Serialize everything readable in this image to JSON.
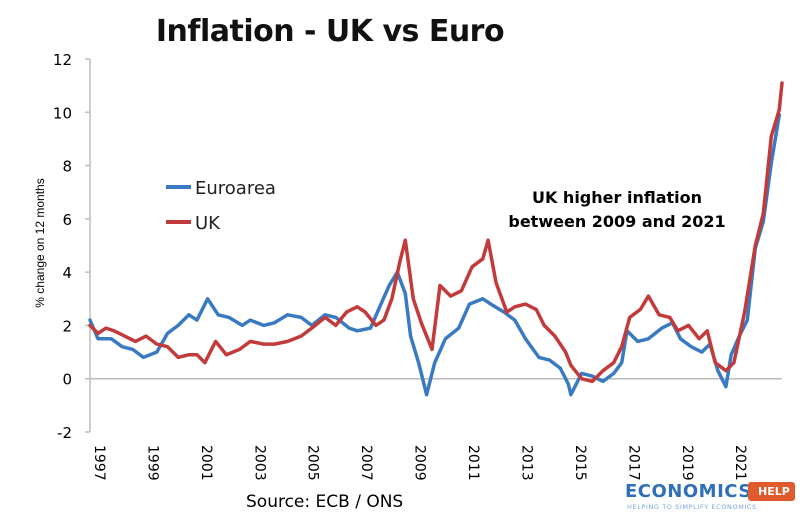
{
  "chart_data": {
    "type": "line",
    "title": "Inflation - UK vs Euro",
    "ylabel": "% change on 12 months",
    "xlabel": "",
    "ylim": [
      -2,
      12
    ],
    "xlim": [
      1997,
      2022.9
    ],
    "yticks": [
      -2,
      0,
      2,
      4,
      6,
      8,
      10,
      12
    ],
    "xticks": [
      "1997",
      "1999",
      "2001",
      "2003",
      "2005",
      "2007",
      "2009",
      "2011",
      "2013",
      "2015",
      "2017",
      "2019",
      "2021"
    ],
    "annotation": [
      "UK higher inflation",
      "between 2009 and 2021"
    ],
    "legend": [
      "Euroarea",
      "UK"
    ],
    "colors": {
      "euro": "#3a7ac2",
      "uk": "#c23a3a"
    },
    "series": [
      {
        "name": "Euroarea",
        "color": "#3a7ac2",
        "points": [
          [
            1997,
            2.2
          ],
          [
            1997.3,
            1.5
          ],
          [
            1997.8,
            1.5
          ],
          [
            1998.2,
            1.2
          ],
          [
            1998.6,
            1.1
          ],
          [
            1999,
            0.8
          ],
          [
            1999.5,
            1.0
          ],
          [
            1999.9,
            1.7
          ],
          [
            2000.3,
            2.0
          ],
          [
            2000.7,
            2.4
          ],
          [
            2001.0,
            2.2
          ],
          [
            2001.4,
            3.0
          ],
          [
            2001.8,
            2.4
          ],
          [
            2002.2,
            2.3
          ],
          [
            2002.7,
            2.0
          ],
          [
            2003.0,
            2.2
          ],
          [
            2003.5,
            2.0
          ],
          [
            2003.9,
            2.1
          ],
          [
            2004.4,
            2.4
          ],
          [
            2004.9,
            2.3
          ],
          [
            2005.3,
            2.0
          ],
          [
            2005.8,
            2.4
          ],
          [
            2006.2,
            2.3
          ],
          [
            2006.7,
            1.9
          ],
          [
            2007.0,
            1.8
          ],
          [
            2007.5,
            1.9
          ],
          [
            2007.8,
            2.6
          ],
          [
            2008.2,
            3.5
          ],
          [
            2008.5,
            4.0
          ],
          [
            2008.8,
            3.2
          ],
          [
            2009.0,
            1.6
          ],
          [
            2009.3,
            0.6
          ],
          [
            2009.6,
            -0.6
          ],
          [
            2009.9,
            0.6
          ],
          [
            2010.3,
            1.5
          ],
          [
            2010.8,
            1.9
          ],
          [
            2011.2,
            2.8
          ],
          [
            2011.7,
            3.0
          ],
          [
            2012.0,
            2.8
          ],
          [
            2012.5,
            2.5
          ],
          [
            2012.9,
            2.2
          ],
          [
            2013.3,
            1.5
          ],
          [
            2013.8,
            0.8
          ],
          [
            2014.2,
            0.7
          ],
          [
            2014.6,
            0.4
          ],
          [
            2014.9,
            -0.2
          ],
          [
            2015.0,
            -0.6
          ],
          [
            2015.4,
            0.2
          ],
          [
            2015.8,
            0.1
          ],
          [
            2016.2,
            -0.1
          ],
          [
            2016.6,
            0.2
          ],
          [
            2016.9,
            0.6
          ],
          [
            2017.1,
            1.8
          ],
          [
            2017.5,
            1.4
          ],
          [
            2017.9,
            1.5
          ],
          [
            2018.4,
            1.9
          ],
          [
            2018.8,
            2.1
          ],
          [
            2019.1,
            1.5
          ],
          [
            2019.5,
            1.2
          ],
          [
            2019.9,
            1.0
          ],
          [
            2020.2,
            1.3
          ],
          [
            2020.5,
            0.3
          ],
          [
            2020.8,
            -0.3
          ],
          [
            2021.0,
            0.9
          ],
          [
            2021.3,
            1.6
          ],
          [
            2021.6,
            2.2
          ],
          [
            2021.9,
            4.9
          ],
          [
            2022.2,
            5.9
          ],
          [
            2022.5,
            8.1
          ],
          [
            2022.8,
            9.9
          ]
        ]
      },
      {
        "name": "UK",
        "color": "#c23a3a",
        "points": [
          [
            1997,
            2.0
          ],
          [
            1997.3,
            1.7
          ],
          [
            1997.6,
            1.9
          ],
          [
            1997.9,
            1.8
          ],
          [
            1998.3,
            1.6
          ],
          [
            1998.7,
            1.4
          ],
          [
            1999.1,
            1.6
          ],
          [
            1999.5,
            1.3
          ],
          [
            1999.9,
            1.2
          ],
          [
            2000.3,
            0.8
          ],
          [
            2000.7,
            0.9
          ],
          [
            2001.0,
            0.9
          ],
          [
            2001.3,
            0.6
          ],
          [
            2001.7,
            1.4
          ],
          [
            2002.1,
            0.9
          ],
          [
            2002.6,
            1.1
          ],
          [
            2003.0,
            1.4
          ],
          [
            2003.5,
            1.3
          ],
          [
            2003.9,
            1.3
          ],
          [
            2004.4,
            1.4
          ],
          [
            2004.9,
            1.6
          ],
          [
            2005.3,
            1.9
          ],
          [
            2005.8,
            2.3
          ],
          [
            2006.2,
            2.0
          ],
          [
            2006.6,
            2.5
          ],
          [
            2007.0,
            2.7
          ],
          [
            2007.3,
            2.5
          ],
          [
            2007.7,
            2.0
          ],
          [
            2008.0,
            2.2
          ],
          [
            2008.3,
            3.0
          ],
          [
            2008.6,
            4.4
          ],
          [
            2008.8,
            5.2
          ],
          [
            2009.1,
            3.0
          ],
          [
            2009.4,
            2.1
          ],
          [
            2009.8,
            1.1
          ],
          [
            2010.1,
            3.5
          ],
          [
            2010.5,
            3.1
          ],
          [
            2010.9,
            3.3
          ],
          [
            2011.3,
            4.2
          ],
          [
            2011.7,
            4.5
          ],
          [
            2011.9,
            5.2
          ],
          [
            2012.2,
            3.6
          ],
          [
            2012.6,
            2.5
          ],
          [
            2012.9,
            2.7
          ],
          [
            2013.3,
            2.8
          ],
          [
            2013.7,
            2.6
          ],
          [
            2014.0,
            2.0
          ],
          [
            2014.4,
            1.6
          ],
          [
            2014.8,
            1.0
          ],
          [
            2015.0,
            0.5
          ],
          [
            2015.4,
            0.0
          ],
          [
            2015.8,
            -0.1
          ],
          [
            2016.2,
            0.3
          ],
          [
            2016.6,
            0.6
          ],
          [
            2016.9,
            1.2
          ],
          [
            2017.2,
            2.3
          ],
          [
            2017.6,
            2.6
          ],
          [
            2017.9,
            3.1
          ],
          [
            2018.3,
            2.4
          ],
          [
            2018.7,
            2.3
          ],
          [
            2019.0,
            1.8
          ],
          [
            2019.4,
            2.0
          ],
          [
            2019.8,
            1.5
          ],
          [
            2020.1,
            1.8
          ],
          [
            2020.4,
            0.6
          ],
          [
            2020.8,
            0.3
          ],
          [
            2021.1,
            0.6
          ],
          [
            2021.5,
            2.5
          ],
          [
            2021.9,
            5.0
          ],
          [
            2022.2,
            6.2
          ],
          [
            2022.5,
            9.1
          ],
          [
            2022.8,
            10.1
          ],
          [
            2022.9,
            11.1
          ]
        ]
      }
    ]
  },
  "footer": {
    "source": "Source: ECB / ONS",
    "logo_main": "ECONOMICS",
    "logo_badge": "HELP",
    "logo_tag": "HELPING TO SIMPLIFY ECONOMICS"
  }
}
